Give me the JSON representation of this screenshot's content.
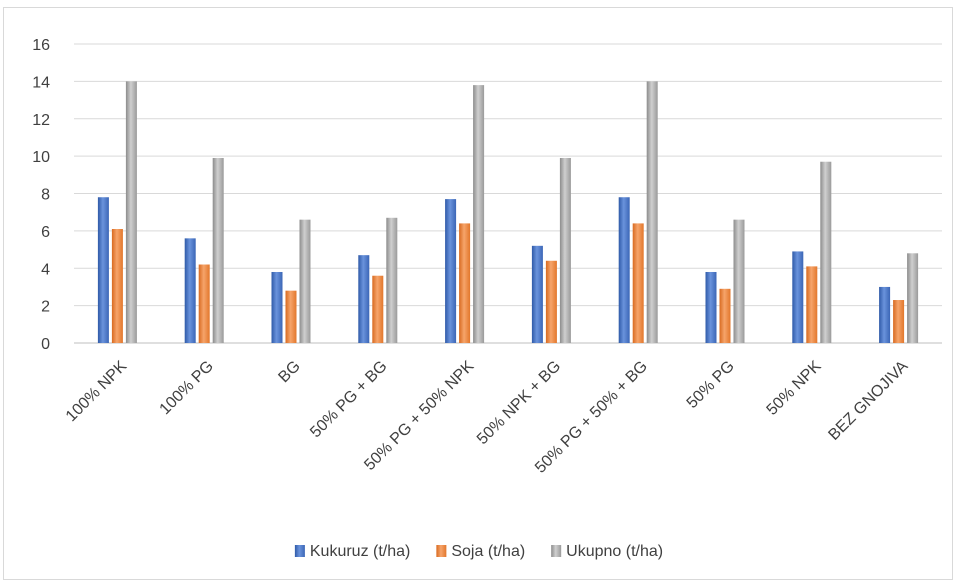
{
  "chart_data": {
    "type": "bar",
    "title": "",
    "xlabel": "",
    "ylabel": "",
    "ylim": [
      0,
      16
    ],
    "yticks": [
      0,
      2,
      4,
      6,
      8,
      10,
      12,
      14,
      16
    ],
    "grid": true,
    "legend_position": "bottom",
    "categories": [
      "100% NPK",
      "100% PG",
      "BG",
      "50% PG + BG",
      "50% PG + 50% NPK",
      "50% NPK + BG",
      "50% PG + 50% + BG",
      "50% PG",
      "50% NPK",
      "BEZ GNOJIVA"
    ],
    "series": [
      {
        "name": "Kukuruz (t/ha)",
        "color": "#4472c4",
        "values": [
          7.8,
          5.6,
          3.8,
          4.7,
          7.7,
          5.2,
          7.8,
          3.8,
          4.9,
          3.0
        ]
      },
      {
        "name": "Soja (t/ha)",
        "color": "#ed7d31",
        "values": [
          6.1,
          4.2,
          2.8,
          3.6,
          6.4,
          4.4,
          6.4,
          2.9,
          4.1,
          2.3
        ]
      },
      {
        "name": "Ukupno (t/ha)",
        "color": "#a5a5a5",
        "values": [
          14.0,
          9.9,
          6.6,
          6.7,
          13.8,
          9.9,
          14.0,
          6.6,
          9.7,
          4.8
        ]
      }
    ]
  }
}
